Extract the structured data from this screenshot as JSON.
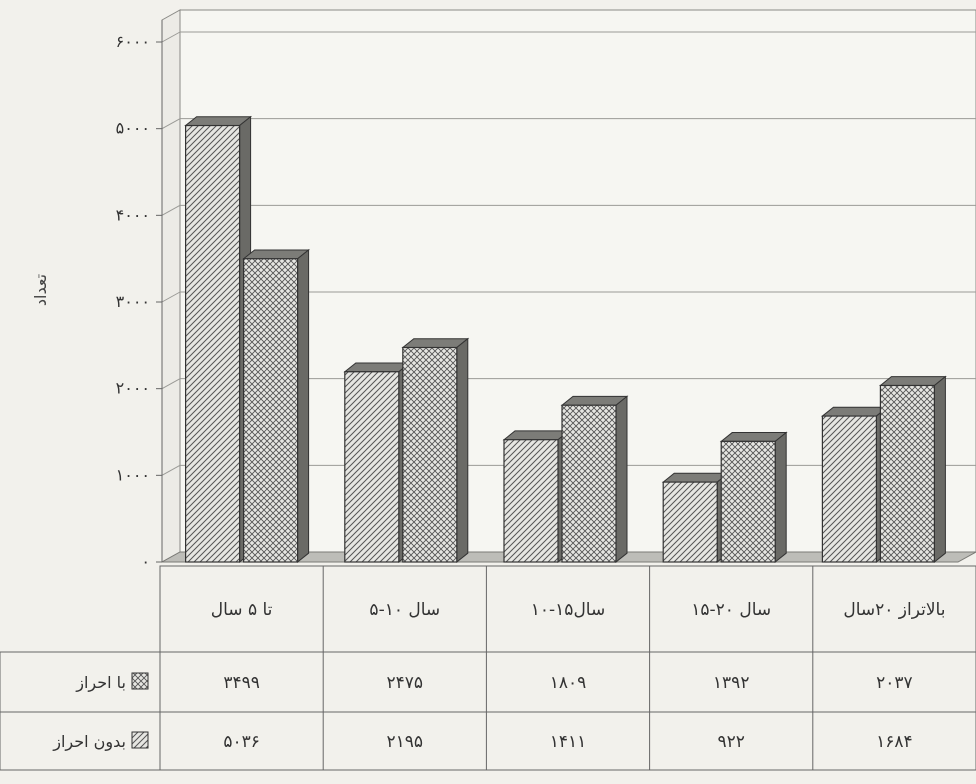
{
  "chart_data": {
    "type": "bar",
    "title": "",
    "xlabel": "",
    "ylabel": "تعداد",
    "ylim": [
      0,
      6000
    ],
    "yticks": [
      {
        "value": 0,
        "label": "۰"
      },
      {
        "value": 1000,
        "label": "۱۰۰۰"
      },
      {
        "value": 2000,
        "label": "۲۰۰۰"
      },
      {
        "value": 3000,
        "label": "۳۰۰۰"
      },
      {
        "value": 4000,
        "label": "۴۰۰۰"
      },
      {
        "value": 5000,
        "label": "۵۰۰۰"
      },
      {
        "value": 6000,
        "label": "۶۰۰۰"
      }
    ],
    "grid": true,
    "legend_placement": "table-left",
    "categories": [
      "تا ۵ سال",
      "سال ۱۰-۵",
      "سال۱۵-۱۰",
      "سال ۲۰-۱۵",
      "بالاتراز ۲۰سال"
    ],
    "series": [
      {
        "name": "با احراز",
        "pattern": "cross-hatch",
        "values": [
          3499,
          2475,
          1809,
          1392,
          2037
        ],
        "value_labels": [
          "۳۴۹۹",
          "۲۴۷۵",
          "۱۸۰۹",
          "۱۳۹۲",
          "۲۰۳۷"
        ]
      },
      {
        "name": "بدون احراز",
        "pattern": "diagonal",
        "values": [
          5036,
          2195,
          1411,
          922,
          1684
        ],
        "value_labels": [
          "۵۰۳۶",
          "۲۱۹۵",
          "۱۴۱۱",
          "۹۲۲",
          "۱۶۸۴"
        ]
      }
    ],
    "colors": {
      "bar": "#d9d9d6",
      "hatch": "#5a5a5a",
      "floor": "#bdbdb8"
    }
  }
}
